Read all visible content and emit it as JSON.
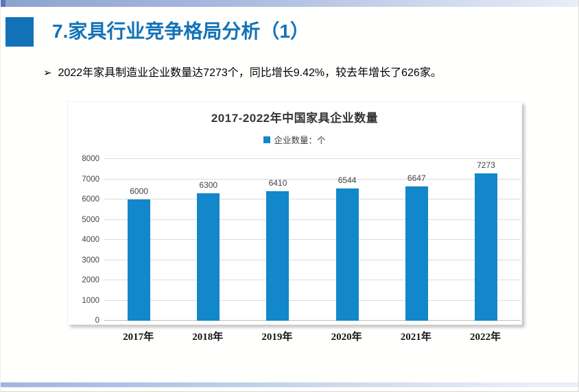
{
  "slide": {
    "header": {
      "title": "7.家具行业竞争格局分析（1）"
    },
    "bullet": {
      "marker": "➢",
      "text": "2022年家具制造业企业数量达7273个，同比增长9.42%，较去年增长了626家。"
    }
  },
  "chart_data": {
    "type": "bar",
    "title": "2017-2022年中国家具企业数量",
    "legend": {
      "label": "企业数量：个",
      "position": "top"
    },
    "categories": [
      "2017年",
      "2018年",
      "2019年",
      "2020年",
      "2021年",
      "2022年"
    ],
    "values": [
      6000,
      6300,
      6410,
      6544,
      6647,
      7273
    ],
    "ylim": [
      0,
      8000
    ],
    "ytick_interval": 1000,
    "grid": true,
    "xlabel": "",
    "ylabel": ""
  },
  "colors": {
    "title_blue": "#1272b8",
    "bar_blue": "#1287c9",
    "gridline": "#dbdbdb",
    "band_left": "#8ca3cf",
    "band_right": "#e9eef8"
  }
}
